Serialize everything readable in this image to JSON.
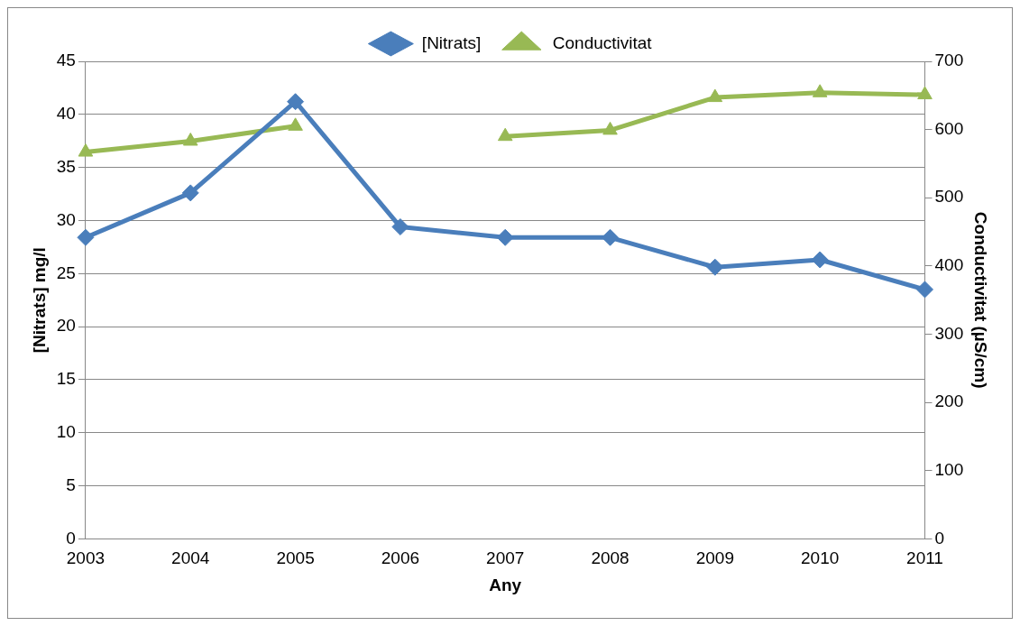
{
  "chart_data": {
    "type": "line",
    "categories": [
      "2003",
      "2004",
      "2005",
      "2006",
      "2007",
      "2008",
      "2009",
      "2010",
      "2011"
    ],
    "series": [
      {
        "name": "[Nitrats]",
        "color": "#4a7ebb",
        "marker": "diamond",
        "values": [
          28.4,
          32.6,
          41.2,
          29.4,
          28.4,
          28.4,
          25.6,
          26.3,
          23.5
        ]
      },
      {
        "name": "Conductivitat",
        "color": "#98b954",
        "marker": "triangle",
        "axis": "y2",
        "values": [
          567,
          583,
          605,
          null,
          590,
          599,
          647,
          654,
          651
        ]
      }
    ],
    "xlabel": "Any",
    "ylabel": "[Nitrats] mg/l",
    "y2label": "Conductivitat (µS/cm)",
    "ylim": [
      0,
      45
    ],
    "yticks": [
      0,
      5,
      10,
      15,
      20,
      25,
      30,
      35,
      40,
      45
    ],
    "y2lim": [
      0,
      700
    ],
    "y2ticks": [
      0,
      100,
      200,
      300,
      400,
      500,
      600,
      700
    ],
    "grid": "y",
    "legend": "top"
  }
}
